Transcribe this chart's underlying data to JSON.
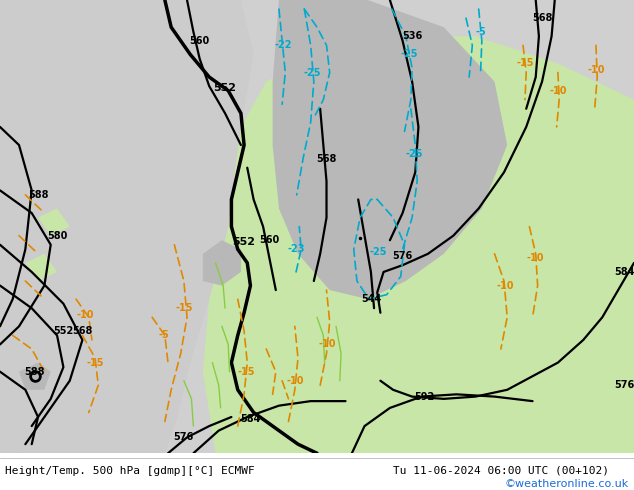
{
  "title_left": "Height/Temp. 500 hPa [gdmp][°C] ECMWF",
  "title_right": "Tu 11-06-2024 06:00 UTC (00+102)",
  "credit": "©weatheronline.co.uk",
  "bg": "#d0d0d0",
  "land_green": "#c8e6a8",
  "land_grey": "#b8b8b8",
  "sea": "#cccccc",
  "black": "#000000",
  "orange": "#e08800",
  "cyan": "#00aacc",
  "green_line": "#88cc44",
  "lfs": 7,
  "tfs": 8,
  "cfs": 8,
  "figsize": [
    6.34,
    4.9
  ],
  "dpi": 100
}
